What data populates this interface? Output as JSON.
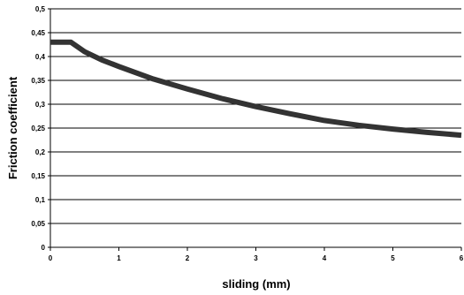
{
  "chart_data": {
    "type": "line",
    "title": "",
    "xlabel": "sliding (mm)",
    "ylabel": "Friction coefficient",
    "xlim": [
      0,
      6
    ],
    "ylim": [
      0,
      0.5
    ],
    "x_ticks": [
      0,
      1,
      2,
      3,
      4,
      5,
      6
    ],
    "x_tick_labels": [
      "0",
      "1",
      "2",
      "3",
      "4",
      "5",
      "6"
    ],
    "y_ticks": [
      0,
      0.05,
      0.1,
      0.15,
      0.2,
      0.25,
      0.3,
      0.35,
      0.4,
      0.45,
      0.5
    ],
    "y_tick_labels": [
      "0",
      "0,05",
      "0,1",
      "0,15",
      "0,2",
      "0,25",
      "0,3",
      "0,35",
      "0,4",
      "0,45",
      "0,5"
    ],
    "grid": "horizontal",
    "legend": "none",
    "series": [
      {
        "color": "#333333",
        "x": [
          0,
          0.3,
          0.5,
          0.75,
          1,
          1.5,
          2,
          2.5,
          3,
          3.5,
          4,
          4.5,
          5,
          5.5,
          6
        ],
        "y": [
          0.43,
          0.43,
          0.41,
          0.393,
          0.379,
          0.353,
          0.332,
          0.312,
          0.295,
          0.28,
          0.266,
          0.256,
          0.248,
          0.241,
          0.235
        ]
      }
    ]
  }
}
